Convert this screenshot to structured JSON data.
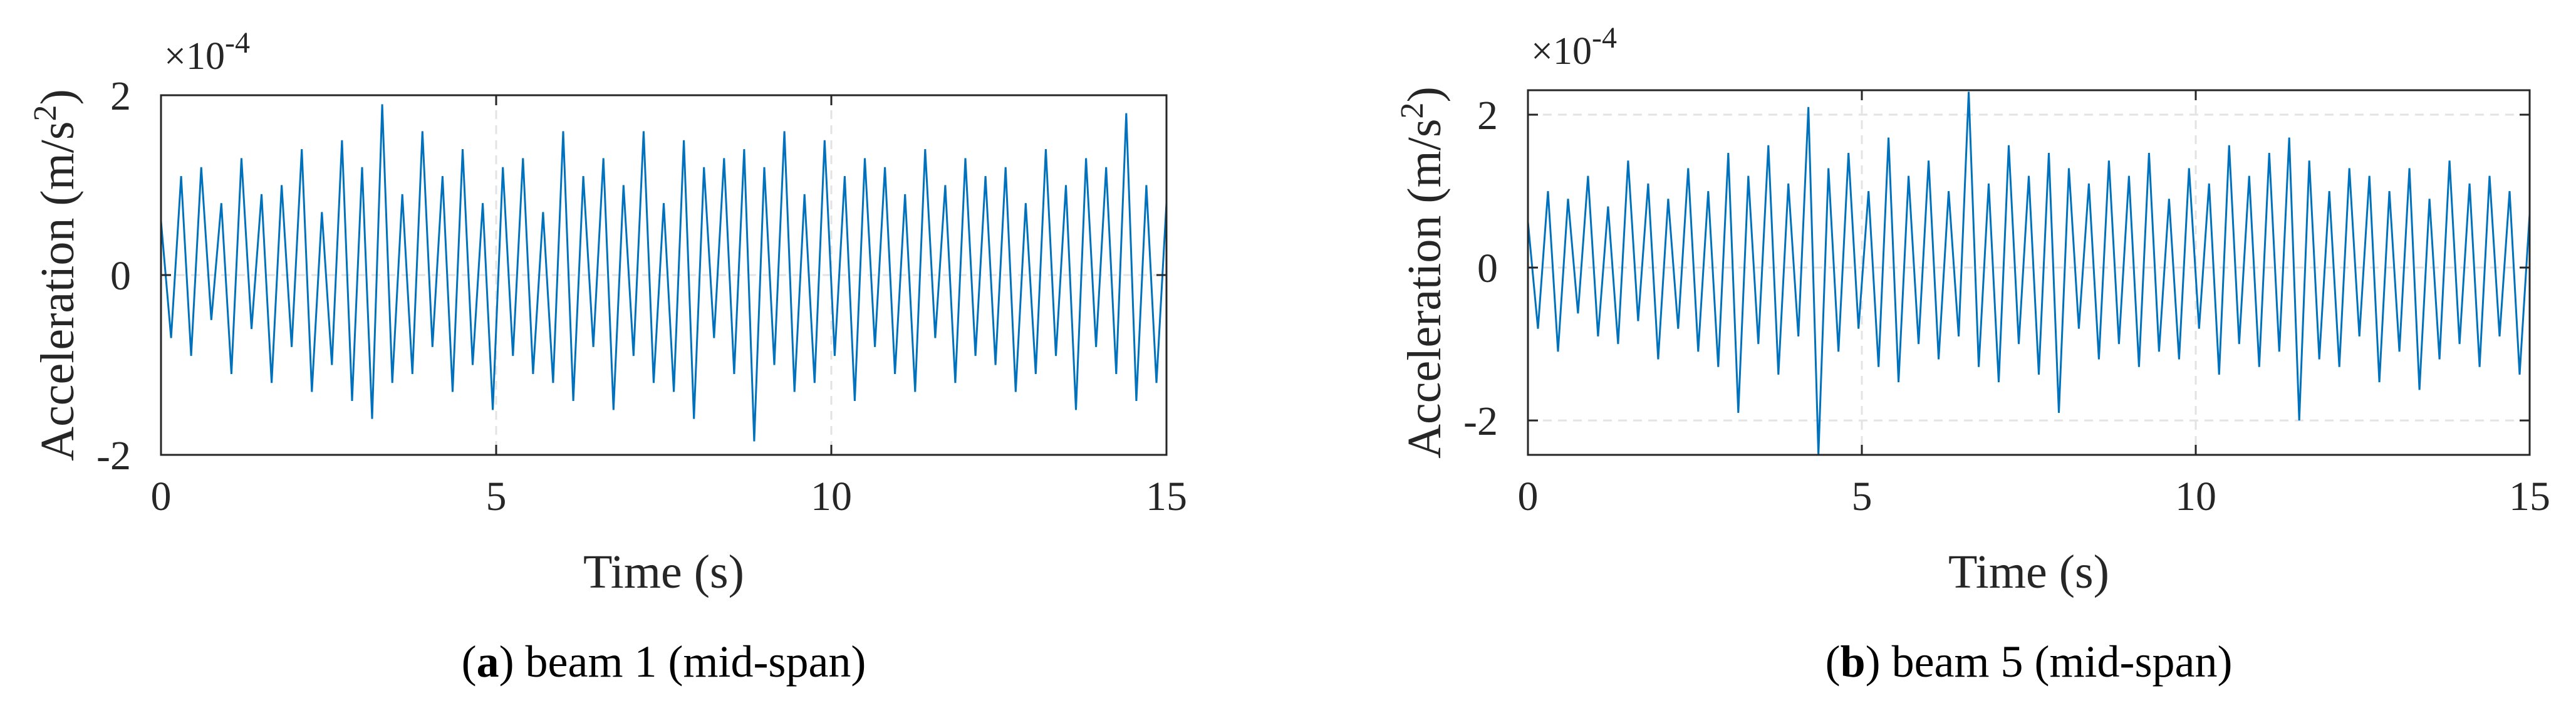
{
  "chart_data": [
    {
      "type": "line",
      "xlabel": "Time (s)",
      "ylabel": "Acceleration (m/s",
      "ylabel_sup": "2",
      "ylabel_end": ")",
      "multiplier": "×10",
      "multiplier_exponent": "-4",
      "caption_open": "(",
      "caption_label": "a",
      "caption_text": ") beam 1 (mid-span)",
      "color": "#0072bd",
      "grid": true,
      "xlim": [
        0,
        15
      ],
      "xticks": [
        0,
        5,
        10,
        15
      ],
      "ylim": [
        -2,
        2
      ],
      "yticks": [
        -2,
        0,
        2
      ],
      "x": [
        0,
        0.15,
        0.3,
        0.45,
        0.6,
        0.75,
        0.9,
        1.05,
        1.2,
        1.35,
        1.5,
        1.65,
        1.8,
        1.95,
        2.1,
        2.25,
        2.4,
        2.55,
        2.7,
        2.85,
        3,
        3.15,
        3.3,
        3.45,
        3.6,
        3.75,
        3.9,
        4.05,
        4.2,
        4.35,
        4.5,
        4.65,
        4.8,
        4.95,
        5.1,
        5.25,
        5.4,
        5.55,
        5.7,
        5.85,
        6,
        6.15,
        6.3,
        6.45,
        6.6,
        6.75,
        6.9,
        7.05,
        7.2,
        7.35,
        7.5,
        7.65,
        7.8,
        7.95,
        8.1,
        8.25,
        8.4,
        8.55,
        8.7,
        8.85,
        9,
        9.15,
        9.3,
        9.45,
        9.6,
        9.75,
        9.9,
        10.05,
        10.2,
        10.35,
        10.5,
        10.65,
        10.8,
        10.95,
        11.1,
        11.25,
        11.4,
        11.55,
        11.7,
        11.85,
        12,
        12.15,
        12.3,
        12.45,
        12.6,
        12.75,
        12.9,
        13.05,
        13.2,
        13.35,
        13.5,
        13.65,
        13.8,
        13.95,
        14.1,
        14.25,
        14.4,
        14.55,
        14.7,
        14.85,
        15
      ],
      "values": [
        0.6,
        -0.7,
        1.1,
        -0.9,
        1.2,
        -0.5,
        0.8,
        -1.1,
        1.3,
        -0.6,
        0.9,
        -1.2,
        1.0,
        -0.8,
        1.4,
        -1.3,
        0.7,
        -1.0,
        1.5,
        -1.4,
        1.2,
        -1.6,
        1.9,
        -1.2,
        0.9,
        -1.1,
        1.6,
        -0.8,
        1.1,
        -1.3,
        1.4,
        -1.0,
        0.8,
        -1.5,
        1.2,
        -0.9,
        1.3,
        -1.1,
        0.7,
        -1.2,
        1.6,
        -1.4,
        1.1,
        -0.8,
        1.3,
        -1.5,
        1.0,
        -0.9,
        1.6,
        -1.2,
        0.8,
        -1.3,
        1.5,
        -1.6,
        1.2,
        -0.7,
        1.3,
        -1.1,
        1.4,
        -1.85,
        1.2,
        -1.0,
        1.6,
        -1.3,
        0.9,
        -1.2,
        1.5,
        -0.9,
        1.1,
        -1.4,
        1.3,
        -0.8,
        1.2,
        -1.1,
        0.9,
        -1.3,
        1.4,
        -0.7,
        1.0,
        -1.2,
        1.3,
        -0.9,
        1.1,
        -1.0,
        1.2,
        -1.3,
        0.8,
        -1.1,
        1.4,
        -0.9,
        1.0,
        -1.5,
        1.3,
        -0.8,
        1.2,
        -1.1,
        1.8,
        -1.4,
        1.0,
        -1.2,
        0.8
      ]
    },
    {
      "type": "line",
      "xlabel": "Time (s)",
      "ylabel": "Acceleration (m/s",
      "ylabel_sup": "2",
      "ylabel_end": ")",
      "multiplier": "×10",
      "multiplier_exponent": "-4",
      "caption_open": "(",
      "caption_label": "b",
      "caption_text": ") beam 5 (mid-span)",
      "color": "#0072bd",
      "grid": true,
      "xlim": [
        0,
        15
      ],
      "xticks": [
        0,
        5,
        10,
        15
      ],
      "ylim": [
        -2.45,
        2.32
      ],
      "yticks": [
        -2,
        0,
        2
      ],
      "x": [
        0,
        0.15,
        0.3,
        0.45,
        0.6,
        0.75,
        0.9,
        1.05,
        1.2,
        1.35,
        1.5,
        1.65,
        1.8,
        1.95,
        2.1,
        2.25,
        2.4,
        2.55,
        2.7,
        2.85,
        3,
        3.15,
        3.3,
        3.45,
        3.6,
        3.75,
        3.9,
        4.05,
        4.2,
        4.35,
        4.5,
        4.65,
        4.8,
        4.95,
        5.1,
        5.25,
        5.4,
        5.55,
        5.7,
        5.85,
        6,
        6.15,
        6.3,
        6.45,
        6.6,
        6.75,
        6.9,
        7.05,
        7.2,
        7.35,
        7.5,
        7.65,
        7.8,
        7.95,
        8.1,
        8.25,
        8.4,
        8.55,
        8.7,
        8.85,
        9,
        9.15,
        9.3,
        9.45,
        9.6,
        9.75,
        9.9,
        10.05,
        10.2,
        10.35,
        10.5,
        10.65,
        10.8,
        10.95,
        11.1,
        11.25,
        11.4,
        11.55,
        11.7,
        11.85,
        12,
        12.15,
        12.3,
        12.45,
        12.6,
        12.75,
        12.9,
        13.05,
        13.2,
        13.35,
        13.5,
        13.65,
        13.8,
        13.95,
        14.1,
        14.25,
        14.4,
        14.55,
        14.7,
        14.85,
        15
      ],
      "values": [
        0.6,
        -0.8,
        1.0,
        -1.1,
        0.9,
        -0.6,
        1.2,
        -0.9,
        0.8,
        -1.0,
        1.4,
        -0.7,
        1.1,
        -1.2,
        0.9,
        -0.8,
        1.3,
        -1.1,
        1.0,
        -1.3,
        1.5,
        -1.9,
        1.2,
        -1.0,
        1.6,
        -1.4,
        1.1,
        -0.9,
        2.1,
        -2.45,
        1.3,
        -1.1,
        1.5,
        -0.8,
        1.0,
        -1.3,
        1.7,
        -1.5,
        1.2,
        -1.0,
        1.4,
        -1.2,
        1.0,
        -0.9,
        2.3,
        -1.3,
        1.1,
        -1.5,
        1.6,
        -1.0,
        1.2,
        -1.4,
        1.5,
        -1.9,
        1.3,
        -0.8,
        1.1,
        -1.2,
        1.4,
        -1.0,
        1.2,
        -1.3,
        1.5,
        -1.1,
        0.9,
        -1.2,
        1.3,
        -0.8,
        1.1,
        -1.4,
        1.6,
        -1.0,
        1.2,
        -1.3,
        1.5,
        -1.1,
        1.7,
        -2.0,
        1.4,
        -1.2,
        1.0,
        -1.3,
        1.3,
        -0.9,
        1.2,
        -1.5,
        1.0,
        -1.1,
        1.3,
        -1.6,
        0.9,
        -1.2,
        1.4,
        -1.0,
        1.1,
        -1.3,
        1.2,
        -0.9,
        1.0,
        -1.4,
        0.7
      ]
    }
  ]
}
